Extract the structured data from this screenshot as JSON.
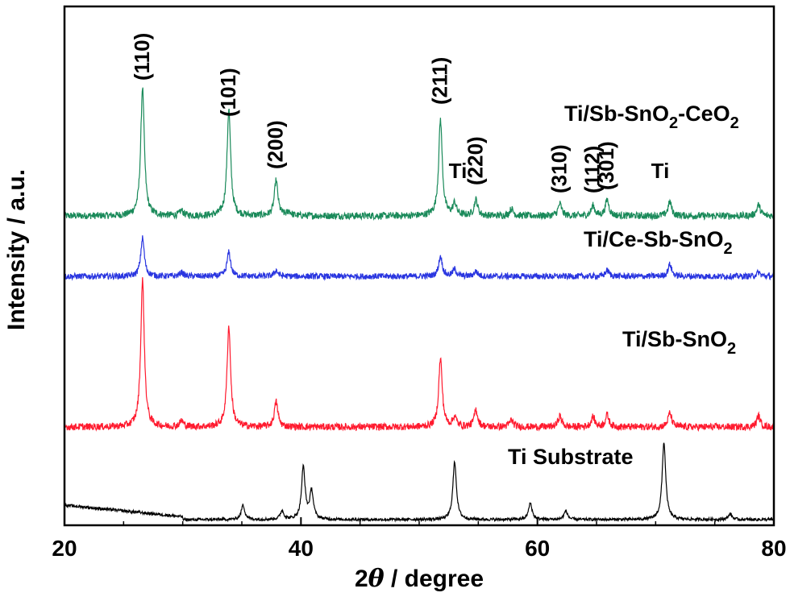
{
  "chart_data": {
    "type": "line",
    "xlabel_prefix": "2",
    "xlabel_theta": "θ",
    "xlabel_suffix": " / degree",
    "ylabel": "Intensity / a.u.",
    "xlim": [
      20,
      80
    ],
    "x_ticks": [
      "20",
      "40",
      "60",
      "80"
    ],
    "y_ticks_shown": false,
    "grid": false,
    "series": [
      {
        "name": "Ti/Sb-SnO2-CeO2",
        "name_parts": [
          "Ti/Sb-SnO",
          "2",
          "-CeO",
          "2"
        ],
        "color": "#1a8a5a",
        "baseline": 0.35,
        "peaks": [
          [
            26.6,
            6.4
          ],
          [
            33.9,
            5.3
          ],
          [
            37.9,
            1.75
          ],
          [
            51.8,
            4.8
          ],
          [
            53.0,
            0.6
          ],
          [
            54.8,
            0.8
          ],
          [
            57.8,
            0.35
          ],
          [
            61.9,
            0.6
          ],
          [
            64.7,
            0.5
          ],
          [
            65.9,
            0.8
          ],
          [
            71.2,
            0.7
          ],
          [
            78.7,
            0.55
          ],
          [
            29.9,
            0.25
          ],
          [
            39.0,
            0.2
          ]
        ]
      },
      {
        "name": "Ti/Ce-Sb-SnO2",
        "name_parts": [
          "Ti/Ce-Sb-SnO",
          "2"
        ],
        "color": "#2a36e0",
        "baseline": 0.3,
        "peaks": [
          [
            26.6,
            1.9
          ],
          [
            33.9,
            1.2
          ],
          [
            37.9,
            0.3
          ],
          [
            51.8,
            1.0
          ],
          [
            53.0,
            0.35
          ],
          [
            54.8,
            0.25
          ],
          [
            65.9,
            0.3
          ],
          [
            71.2,
            0.6
          ],
          [
            78.7,
            0.2
          ],
          [
            29.9,
            0.2
          ]
        ]
      },
      {
        "name": "Ti/Sb-SnO2",
        "name_parts": [
          "Ti/Sb-SnO",
          "2"
        ],
        "color": "#ff1a2e",
        "baseline": 0.35,
        "peaks": [
          [
            26.6,
            7.3
          ],
          [
            33.9,
            5.0
          ],
          [
            37.9,
            1.25
          ],
          [
            51.8,
            3.4
          ],
          [
            53.0,
            0.5
          ],
          [
            54.8,
            0.85
          ],
          [
            57.8,
            0.35
          ],
          [
            61.9,
            0.55
          ],
          [
            64.7,
            0.5
          ],
          [
            65.9,
            0.6
          ],
          [
            71.2,
            0.7
          ],
          [
            78.7,
            0.55
          ],
          [
            29.9,
            0.3
          ]
        ]
      },
      {
        "name": "Ti Substrate",
        "name_parts": [
          "Ti Substrate"
        ],
        "color": "#000000",
        "baseline": 0.15,
        "peaks": [
          [
            35.1,
            0.75
          ],
          [
            38.4,
            0.45
          ],
          [
            40.2,
            2.7
          ],
          [
            40.9,
            1.45
          ],
          [
            53.0,
            3.0
          ],
          [
            59.4,
            0.85
          ],
          [
            62.4,
            0.45
          ],
          [
            70.7,
            4.0
          ],
          [
            76.3,
            0.3
          ]
        ],
        "background_hump": [
          [
            20,
            0.75
          ],
          [
            25,
            0.55
          ],
          [
            30,
            0.15
          ]
        ]
      }
    ],
    "peak_labels": [
      {
        "text": "(110)",
        "x": 26.6
      },
      {
        "text": "(101)",
        "x": 33.9
      },
      {
        "text": "(200)",
        "x": 37.9
      },
      {
        "text": "(211)",
        "x": 51.8
      },
      {
        "text": "(220)",
        "x": 54.8
      },
      {
        "text": "(310)",
        "x": 61.9
      },
      {
        "text": "(112)",
        "x": 64.7
      },
      {
        "text": "(301)",
        "x": 65.9
      }
    ],
    "ti_labels": [
      {
        "text": "Ti",
        "x": 53.0
      },
      {
        "text": "Ti",
        "x": 71.2
      }
    ]
  }
}
